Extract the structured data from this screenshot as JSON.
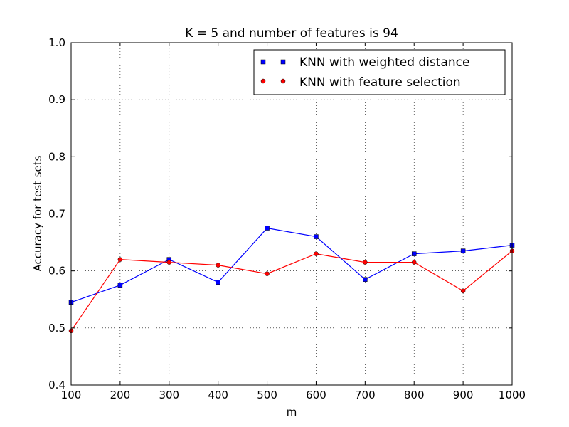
{
  "chart_data": {
    "type": "line",
    "title": "K = 5 and number of features is 94",
    "xlabel": "m",
    "ylabel": "Accuracy for test sets",
    "xlim": [
      100,
      1000
    ],
    "ylim": [
      0.4,
      1.0
    ],
    "x": [
      100,
      200,
      300,
      400,
      500,
      600,
      700,
      800,
      900,
      1000
    ],
    "x_ticks": [
      "100",
      "200",
      "300",
      "400",
      "500",
      "600",
      "700",
      "800",
      "900",
      "1000"
    ],
    "y_ticks": [
      "0.4",
      "0.5",
      "0.6",
      "0.7",
      "0.8",
      "0.9",
      "1.0"
    ],
    "grid": true,
    "legend_position": "top-right",
    "series": [
      {
        "name": "KNN with weighted distance",
        "color": "#0000ff",
        "marker": "square",
        "values": [
          0.545,
          0.575,
          0.62,
          0.58,
          0.675,
          0.66,
          0.585,
          0.63,
          0.635,
          0.645
        ]
      },
      {
        "name": "KNN with feature selection",
        "color": "#ff0000",
        "marker": "circle",
        "values": [
          0.495,
          0.62,
          0.615,
          0.61,
          0.595,
          0.63,
          0.615,
          0.615,
          0.565,
          0.635
        ]
      }
    ]
  }
}
